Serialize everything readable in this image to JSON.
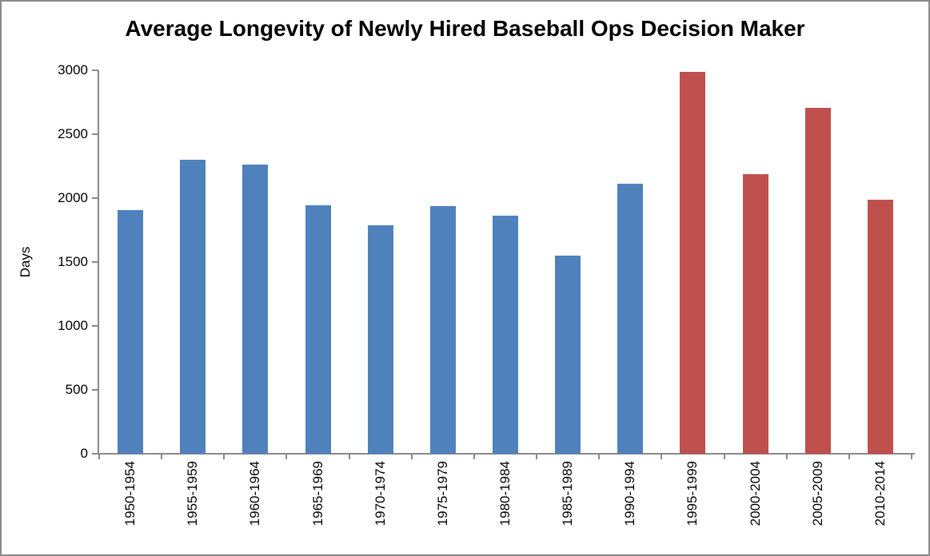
{
  "chart_data": {
    "type": "bar",
    "title": "Average Longevity of Newly Hired Baseball Ops Decision Maker",
    "ylabel": "Days",
    "categories": [
      "1950-1954",
      "1955-1959",
      "1960-1964",
      "1965-1969",
      "1970-1974",
      "1975-1979",
      "1980-1984",
      "1985-1989",
      "1990-1994",
      "1995-1999",
      "2000-2004",
      "2005-2009",
      "2010-2014"
    ],
    "values": [
      1905,
      2300,
      2260,
      1945,
      1790,
      1940,
      1860,
      1550,
      2115,
      2990,
      2190,
      2705,
      1985
    ],
    "bar_colors": [
      "#4f81bd",
      "#4f81bd",
      "#4f81bd",
      "#4f81bd",
      "#4f81bd",
      "#4f81bd",
      "#4f81bd",
      "#4f81bd",
      "#4f81bd",
      "#c0504d",
      "#c0504d",
      "#c0504d",
      "#c0504d"
    ],
    "ylim": [
      0,
      3000
    ],
    "yticks": [
      0,
      500,
      1000,
      1500,
      2000,
      2500,
      3000
    ],
    "grid": false,
    "legend": "none",
    "colors": {
      "blue_bar": "#4f81bd",
      "red_bar": "#c0504d",
      "axis": "#8a8a8a",
      "text": "#000000",
      "frame_border": "#8a8a8a",
      "background": "#ffffff"
    }
  }
}
